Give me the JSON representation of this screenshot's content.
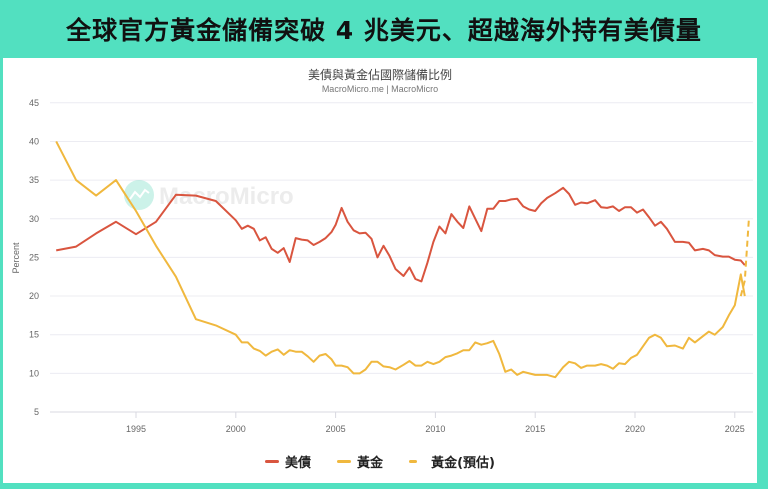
{
  "banner": {
    "title": "全球官方黃金儲備突破 4 兆美元、超越海外持有美債量"
  },
  "chart": {
    "title": "美債與黃金佔國際儲備比例",
    "subtitle": "MacroMicro.me | MacroMicro",
    "watermark": "MacroMicro",
    "ylabel": "Percent",
    "legend": [
      {
        "label": "美債",
        "color": "#d9553f",
        "style": "solid"
      },
      {
        "label": "黃金",
        "color": "#f0b83e",
        "style": "solid"
      },
      {
        "label": "黃金(預估)",
        "color": "#f0b83e",
        "style": "dashed"
      }
    ]
  },
  "chart_data": {
    "type": "line",
    "title": "美債與黃金佔國際儲備比例",
    "subtitle": "MacroMicro.me | MacroMicro",
    "xlabel": "",
    "ylabel": "Percent",
    "ylim": [
      5,
      45
    ],
    "yticks": [
      5,
      10,
      15,
      20,
      25,
      30,
      35,
      40,
      45
    ],
    "xlim": [
      1990,
      2026
    ],
    "xticks": [
      1995,
      2000,
      2005,
      2010,
      2015,
      2020,
      2025
    ],
    "grid": true,
    "legend_position": "bottom",
    "series": [
      {
        "name": "美債",
        "color": "#d9553f",
        "x": [
          1991,
          1992,
          1993,
          1994,
          1995,
          1996,
          1997,
          1998,
          1999,
          2000,
          2000.3,
          2000.6,
          2000.9,
          2001.2,
          2001.5,
          2001.8,
          2002.1,
          2002.4,
          2002.7,
          2003,
          2003.3,
          2003.6,
          2003.9,
          2004.2,
          2004.5,
          2004.8,
          2005,
          2005.3,
          2005.6,
          2005.9,
          2006.2,
          2006.5,
          2006.8,
          2007.1,
          2007.4,
          2007.7,
          2008,
          2008.4,
          2008.7,
          2009,
          2009.3,
          2009.6,
          2009.9,
          2010.2,
          2010.5,
          2010.8,
          2011.1,
          2011.4,
          2011.7,
          2012,
          2012.3,
          2012.6,
          2012.9,
          2013.2,
          2013.5,
          2013.8,
          2014.1,
          2014.4,
          2014.7,
          2015,
          2015.3,
          2015.6,
          2016,
          2016.4,
          2016.7,
          2017,
          2017.3,
          2017.6,
          2018,
          2018.3,
          2018.6,
          2018.9,
          2019.2,
          2019.5,
          2019.8,
          2020.1,
          2020.4,
          2020.7,
          2021,
          2021.3,
          2021.6,
          2022,
          2022.4,
          2022.7,
          2023,
          2023.4,
          2023.7,
          2024,
          2024.4,
          2024.7,
          2025,
          2025.3,
          2025.5
        ],
        "values": [
          25.9,
          26.4,
          28.1,
          29.6,
          28.0,
          29.6,
          33.1,
          33.0,
          32.3,
          29.8,
          28.7,
          29.1,
          28.7,
          27.2,
          27.6,
          26.1,
          25.6,
          26.2,
          24.4,
          27.5,
          27.3,
          27.2,
          26.6,
          27.0,
          27.5,
          28.3,
          29.2,
          31.4,
          29.6,
          28.5,
          28.1,
          28.2,
          27.4,
          25.0,
          26.5,
          25.2,
          23.5,
          22.6,
          23.7,
          22.2,
          21.9,
          24.3,
          27.0,
          29.0,
          28.1,
          30.6,
          29.6,
          28.8,
          31.6,
          30.0,
          28.4,
          31.3,
          31.3,
          32.3,
          32.3,
          32.5,
          32.6,
          31.6,
          31.2,
          31.0,
          32.0,
          32.7,
          33.3,
          34.0,
          33.2,
          31.8,
          32.1,
          32.0,
          32.4,
          31.5,
          31.4,
          31.6,
          31.0,
          31.5,
          31.5,
          30.8,
          31.2,
          30.2,
          29.1,
          29.6,
          28.7,
          27.0,
          27.0,
          26.9,
          25.9,
          26.1,
          25.9,
          25.3,
          25.1,
          25.1,
          24.7,
          24.6,
          24.0
        ]
      },
      {
        "name": "黃金",
        "color": "#f0b83e",
        "x": [
          1991,
          1992,
          1993,
          1994,
          1995,
          1996,
          1997,
          1998,
          1999,
          2000,
          2000.3,
          2000.6,
          2000.9,
          2001.2,
          2001.5,
          2001.8,
          2002.1,
          2002.4,
          2002.7,
          2003,
          2003.3,
          2003.6,
          2003.9,
          2004.2,
          2004.5,
          2004.8,
          2005,
          2005.3,
          2005.6,
          2005.9,
          2006.2,
          2006.5,
          2006.8,
          2007.1,
          2007.4,
          2007.7,
          2008,
          2008.4,
          2008.7,
          2009,
          2009.3,
          2009.6,
          2009.9,
          2010.2,
          2010.5,
          2010.8,
          2011.1,
          2011.4,
          2011.7,
          2012,
          2012.3,
          2012.6,
          2012.9,
          2013.2,
          2013.5,
          2013.8,
          2014.1,
          2014.4,
          2014.7,
          2015,
          2015.3,
          2015.6,
          2016,
          2016.4,
          2016.7,
          2017,
          2017.3,
          2017.6,
          2018,
          2018.3,
          2018.6,
          2018.9,
          2019.2,
          2019.5,
          2019.8,
          2020.1,
          2020.4,
          2020.7,
          2021,
          2021.3,
          2021.6,
          2022,
          2022.4,
          2022.7,
          2023,
          2023.4,
          2023.7,
          2024,
          2024.4,
          2024.7,
          2025,
          2025.3,
          2025.5
        ],
        "values": [
          40.0,
          35.0,
          33.0,
          35.0,
          31.0,
          26.5,
          22.5,
          17.0,
          16.2,
          15.0,
          14.0,
          14.0,
          13.2,
          12.9,
          12.3,
          12.8,
          13.1,
          12.4,
          13.0,
          12.8,
          12.8,
          12.2,
          11.5,
          12.3,
          12.5,
          11.8,
          11.0,
          11.0,
          10.8,
          10.0,
          10.0,
          10.5,
          11.5,
          11.5,
          10.9,
          10.8,
          10.5,
          11.1,
          11.6,
          11.0,
          11.0,
          11.5,
          11.2,
          11.5,
          12.1,
          12.3,
          12.6,
          13.0,
          13.0,
          14.0,
          13.7,
          13.9,
          14.2,
          12.5,
          10.2,
          10.5,
          9.8,
          10.2,
          10.0,
          9.8,
          9.8,
          9.8,
          9.5,
          10.8,
          11.5,
          11.3,
          10.7,
          11.0,
          11.0,
          11.2,
          11.0,
          10.6,
          11.3,
          11.2,
          12.0,
          12.4,
          13.5,
          14.6,
          15.0,
          14.6,
          13.5,
          13.6,
          13.2,
          14.6,
          14.0,
          14.8,
          15.4,
          15.0,
          16.0,
          17.5,
          18.8,
          22.8,
          20.0
        ]
      },
      {
        "name": "黃金(預估)",
        "color": "#f0b83e",
        "dashed": true,
        "x": [
          2025.3,
          2025.5,
          2025.7
        ],
        "values": [
          20.0,
          22.0,
          29.8
        ]
      }
    ]
  }
}
